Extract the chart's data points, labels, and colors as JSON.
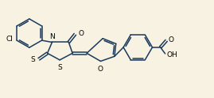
{
  "background_color": "#f7f2e2",
  "line_color": "#1a3a5c",
  "line_width": 1.1,
  "font_size": 6.5,
  "figsize": [
    2.69,
    1.24
  ],
  "dpi": 100,
  "xlim": [
    0.0,
    10.0
  ],
  "ylim": [
    0.0,
    4.6
  ]
}
